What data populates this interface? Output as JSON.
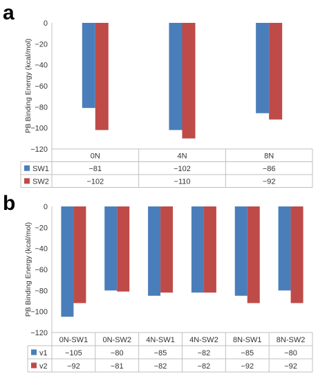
{
  "panels": [
    {
      "letter": "a"
    },
    {
      "letter": "b"
    }
  ],
  "colors": {
    "series1": "#4a7ebb",
    "series2": "#be4b48",
    "grid": "#bfbfbf",
    "text": "#333333"
  },
  "chart_data": [
    {
      "type": "bar",
      "ylabel": "PB Binding Energy (kcal/mol)",
      "ylim": [
        -120,
        0
      ],
      "yticks": [
        0,
        -20,
        -40,
        -60,
        -80,
        -100,
        -120
      ],
      "categories": [
        "0N",
        "4N",
        "8N"
      ],
      "series": [
        {
          "name": "SW1",
          "values": [
            -81,
            -102,
            -86
          ],
          "labels": [
            "−81",
            "−102",
            "−86"
          ]
        },
        {
          "name": "SW2",
          "values": [
            -102,
            -110,
            -92
          ],
          "labels": [
            "−102",
            "−110",
            "−92"
          ]
        }
      ],
      "data_table": true
    },
    {
      "type": "bar",
      "ylabel": "PB Binding Energy (kcal/mol)",
      "ylim": [
        -120,
        0
      ],
      "yticks": [
        0,
        -20,
        -40,
        -60,
        -80,
        -100,
        -120
      ],
      "categories": [
        "0N-SW1",
        "0N-SW2",
        "4N-SW1",
        "4N-SW2",
        "8N-SW1",
        "8N-SW2"
      ],
      "series": [
        {
          "name": "v1",
          "values": [
            -105,
            -80,
            -85,
            -82,
            -85,
            -80
          ],
          "labels": [
            "−105",
            "−80",
            "−85",
            "−82",
            "−85",
            "−80"
          ]
        },
        {
          "name": "v2",
          "values": [
            -92,
            -81,
            -82,
            -82,
            -92,
            -92
          ],
          "labels": [
            "−92",
            "−81",
            "−82",
            "−82",
            "−92",
            "−92"
          ]
        }
      ],
      "data_table": true
    }
  ]
}
